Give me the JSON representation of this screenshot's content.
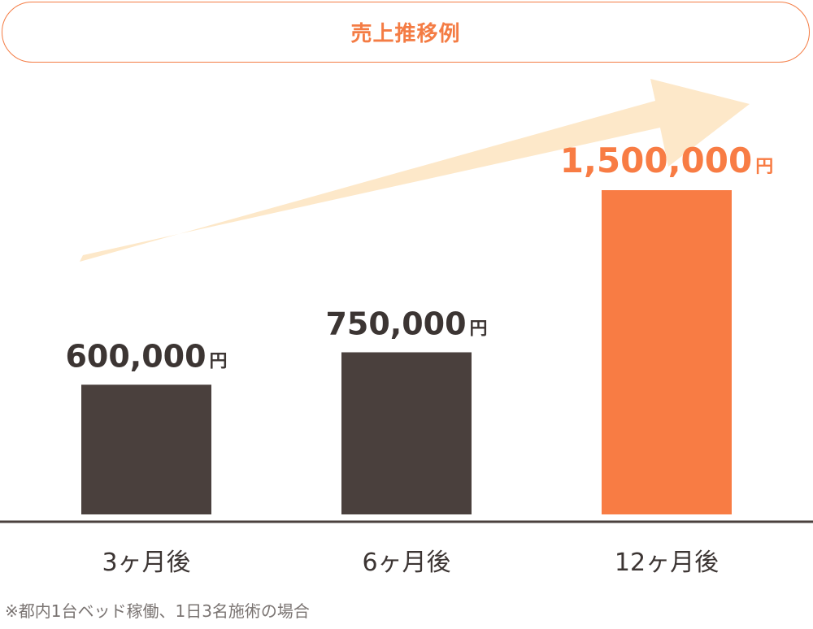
{
  "title": "売上推移例",
  "footnote": "※都内1台ベッド稼働、1日3名施術の場合",
  "colors": {
    "accent": "#f87c44",
    "bar_dark": "#4a403d",
    "arrow": "#fde8c9",
    "axis": "#4a403d",
    "text_dark": "#3c3533"
  },
  "chart_data": {
    "type": "bar",
    "categories": [
      "3ヶ月後",
      "6ヶ月後",
      "12ヶ月後"
    ],
    "values": [
      600000,
      750000,
      1500000
    ],
    "value_labels": [
      "600,000",
      "750,000",
      "1,500,000"
    ],
    "unit": "円",
    "title": "売上推移例",
    "xlabel": "",
    "ylabel": "",
    "highlight_index": 2,
    "grid": false,
    "legend": "none"
  }
}
